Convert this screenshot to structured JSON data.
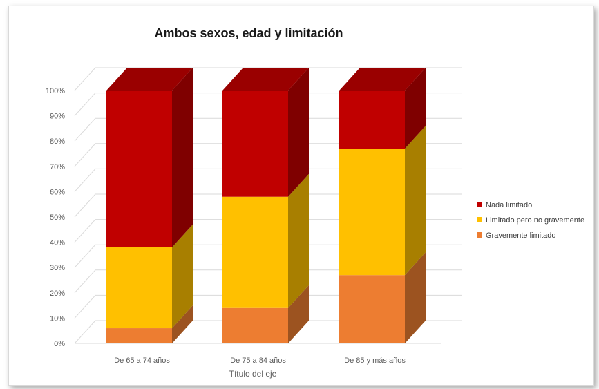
{
  "chart_data": {
    "type": "bar",
    "stacked": "percent",
    "style": "3d",
    "title": "Ambos sexos, edad y limitación",
    "xlabel": "Título del eje",
    "ylabel": "",
    "ylim": [
      0,
      100
    ],
    "yticks": [
      "0%",
      "10%",
      "20%",
      "30%",
      "40%",
      "50%",
      "60%",
      "70%",
      "80%",
      "90%",
      "100%"
    ],
    "categories": [
      "De 65 a 74 años",
      "De 75 a 84 años",
      "De 85 y más años"
    ],
    "series": [
      {
        "name": "Gravemente limitado",
        "values": [
          6,
          14,
          27
        ],
        "color": "#ED7D31"
      },
      {
        "name": "Limitado pero no gravemente",
        "values": [
          32,
          44,
          50
        ],
        "color": "#FFC000"
      },
      {
        "name": "Nada limitado",
        "values": [
          62,
          42,
          23
        ],
        "color": "#C00000"
      }
    ],
    "legend_order": [
      "Nada limitado",
      "Limitado pero no gravemente",
      "Gravemente limitado"
    ],
    "legend_position": "right",
    "grid": true
  }
}
